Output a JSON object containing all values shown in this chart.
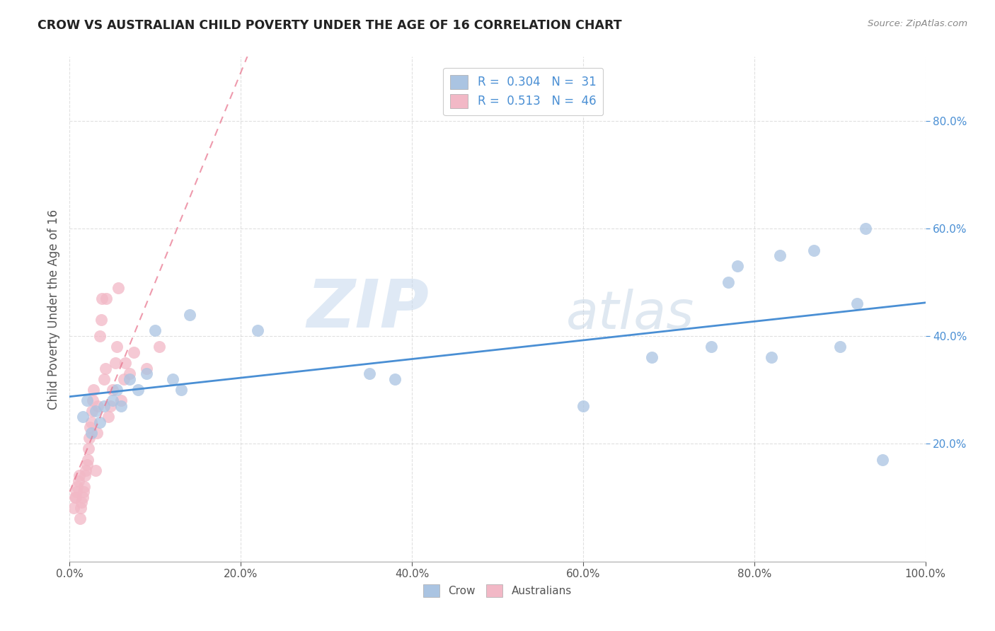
{
  "title": "CROW VS AUSTRALIAN CHILD POVERTY UNDER THE AGE OF 16 CORRELATION CHART",
  "source": "Source: ZipAtlas.com",
  "ylabel": "Child Poverty Under the Age of 16",
  "xlim": [
    0.0,
    1.0
  ],
  "ylim": [
    -0.02,
    0.92
  ],
  "xtick_values": [
    0.0,
    0.2,
    0.4,
    0.6,
    0.8,
    1.0
  ],
  "xtick_labels": [
    "0.0%",
    "20.0%",
    "40.0%",
    "60.0%",
    "80.0%",
    "100.0%"
  ],
  "ytick_values": [
    0.2,
    0.4,
    0.6,
    0.8
  ],
  "ytick_labels": [
    "20.0%",
    "40.0%",
    "60.0%",
    "80.0%"
  ],
  "crow_color": "#aac4e2",
  "australians_color": "#f2b8c6",
  "crow_line_color": "#4a8fd4",
  "australians_line_color": "#e8708a",
  "legend_crow_R": "0.304",
  "legend_crow_N": "31",
  "legend_aus_R": "0.513",
  "legend_aus_N": "46",
  "crow_x": [
    0.015,
    0.02,
    0.025,
    0.03,
    0.035,
    0.04,
    0.05,
    0.055,
    0.06,
    0.07,
    0.08,
    0.09,
    0.1,
    0.12,
    0.13,
    0.14,
    0.22,
    0.35,
    0.38,
    0.6,
    0.68,
    0.75,
    0.77,
    0.78,
    0.82,
    0.83,
    0.87,
    0.9,
    0.92,
    0.93,
    0.95
  ],
  "crow_y": [
    0.25,
    0.28,
    0.22,
    0.26,
    0.24,
    0.27,
    0.28,
    0.3,
    0.27,
    0.32,
    0.3,
    0.33,
    0.41,
    0.32,
    0.3,
    0.44,
    0.41,
    0.33,
    0.32,
    0.27,
    0.36,
    0.38,
    0.5,
    0.53,
    0.36,
    0.55,
    0.56,
    0.38,
    0.46,
    0.6,
    0.17
  ],
  "aus_x": [
    0.005,
    0.006,
    0.007,
    0.008,
    0.009,
    0.01,
    0.011,
    0.012,
    0.013,
    0.014,
    0.015,
    0.016,
    0.017,
    0.018,
    0.019,
    0.02,
    0.021,
    0.022,
    0.023,
    0.024,
    0.025,
    0.026,
    0.027,
    0.028,
    0.03,
    0.032,
    0.033,
    0.035,
    0.037,
    0.038,
    0.04,
    0.042,
    0.043,
    0.045,
    0.048,
    0.05,
    0.053,
    0.055,
    0.057,
    0.06,
    0.063,
    0.065,
    0.07,
    0.075,
    0.09,
    0.105
  ],
  "aus_y": [
    0.08,
    0.1,
    0.1,
    0.11,
    0.12,
    0.13,
    0.14,
    0.06,
    0.08,
    0.09,
    0.1,
    0.11,
    0.12,
    0.14,
    0.15,
    0.16,
    0.17,
    0.19,
    0.21,
    0.23,
    0.24,
    0.26,
    0.28,
    0.3,
    0.15,
    0.22,
    0.27,
    0.4,
    0.43,
    0.47,
    0.32,
    0.34,
    0.47,
    0.25,
    0.27,
    0.3,
    0.35,
    0.38,
    0.49,
    0.28,
    0.32,
    0.35,
    0.33,
    0.37,
    0.34,
    0.38
  ],
  "watermark_zip": "ZIP",
  "watermark_atlas": "atlas",
  "background_color": "#ffffff",
  "grid_color": "#cccccc"
}
